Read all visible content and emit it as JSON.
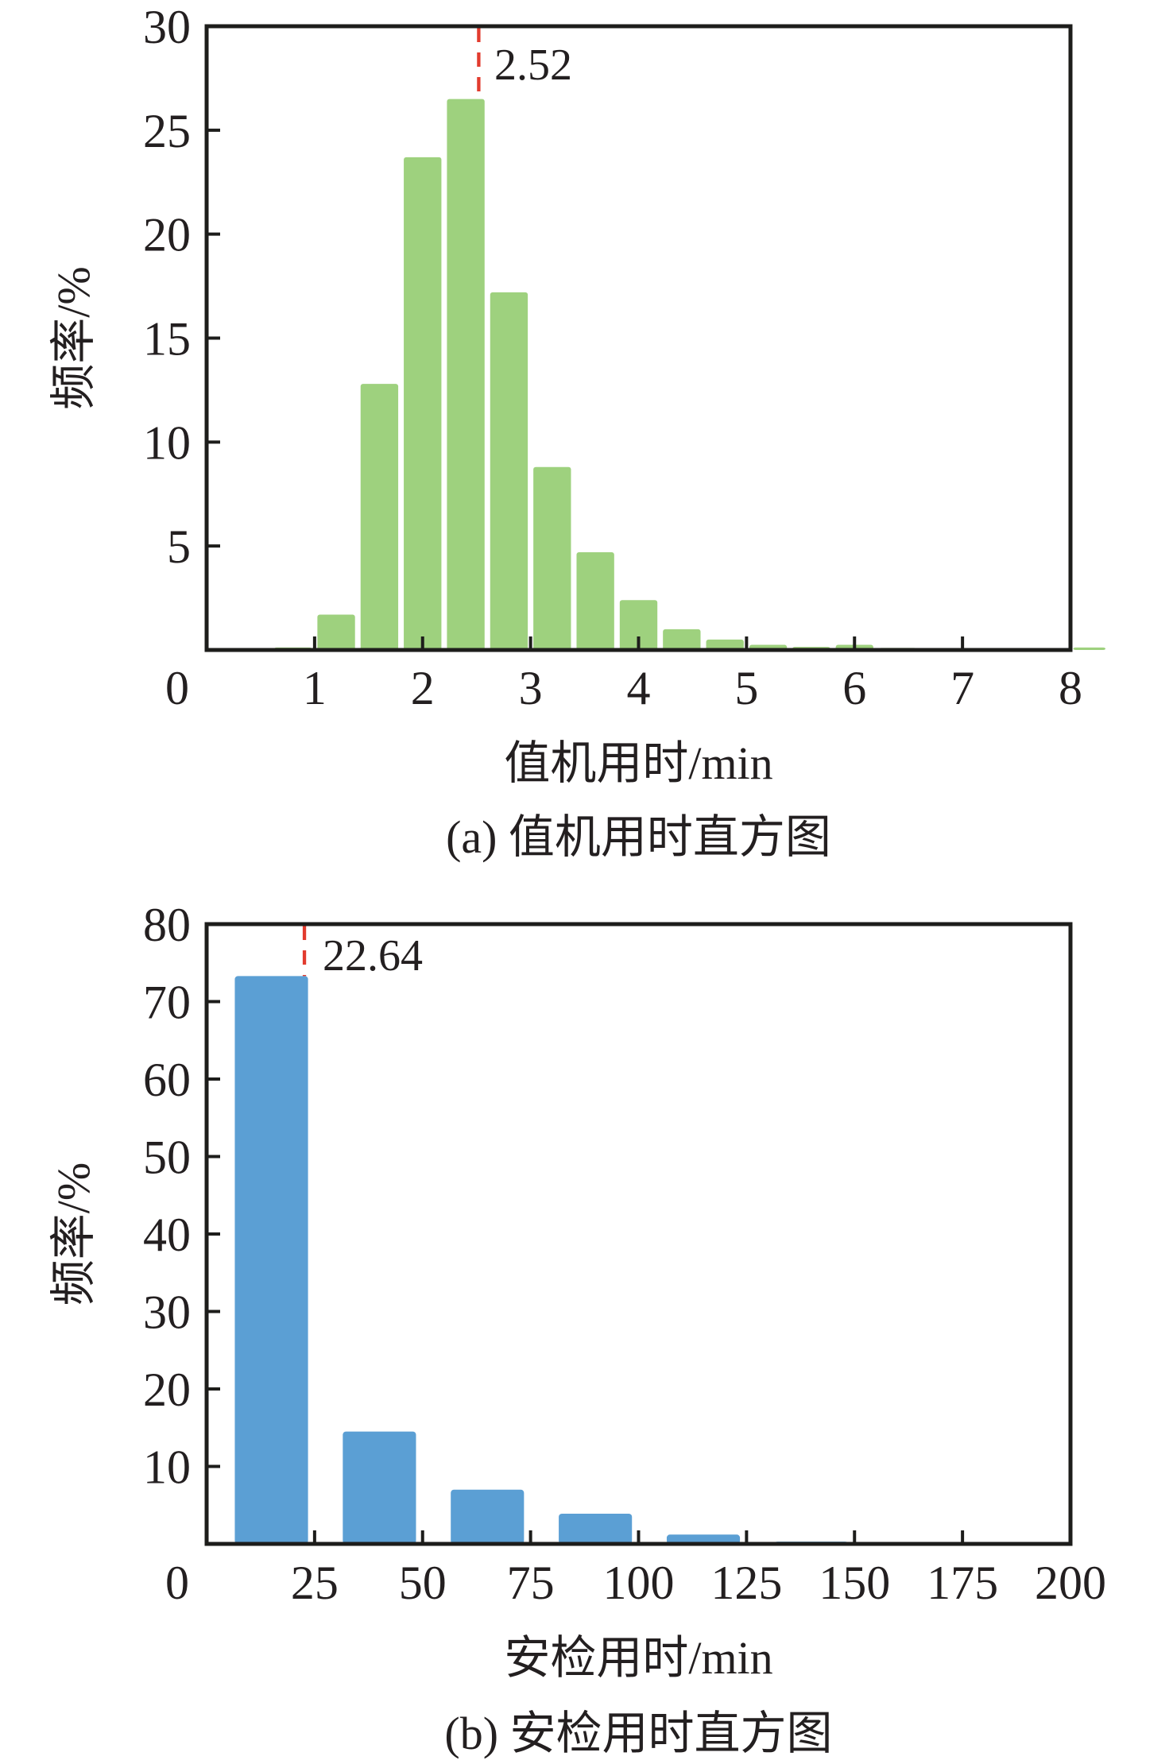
{
  "style": {
    "background": "#ffffff",
    "axis_color": "#1d1d1b",
    "text_color": "#231f20",
    "mean_line_color": "#e23b2e"
  },
  "chart_data": [
    {
      "type": "bar",
      "panel": "a",
      "caption": "(a) 值机用时直方图",
      "xlabel": "值机用时/min",
      "ylabel": "频率/%",
      "xlim": [
        0,
        8
      ],
      "ylim": [
        0,
        30
      ],
      "x_ticks": [
        0,
        1,
        2,
        3,
        4,
        5,
        6,
        7,
        8
      ],
      "y_ticks": [
        5,
        10,
        15,
        20,
        25,
        30
      ],
      "bar_color": "#9ed17e",
      "mean_value": 2.52,
      "mean_label": "2.52",
      "legend": "none",
      "grid": false,
      "bins": [
        {
          "x0": 0.6,
          "x1": 1.0,
          "value": 0.12
        },
        {
          "x0": 1.0,
          "x1": 1.4,
          "value": 1.7
        },
        {
          "x0": 1.4,
          "x1": 1.8,
          "value": 12.8
        },
        {
          "x0": 1.8,
          "x1": 2.2,
          "value": 23.7
        },
        {
          "x0": 2.2,
          "x1": 2.6,
          "value": 26.5
        },
        {
          "x0": 2.6,
          "x1": 3.0,
          "value": 17.2
        },
        {
          "x0": 3.0,
          "x1": 3.4,
          "value": 8.8
        },
        {
          "x0": 3.4,
          "x1": 3.8,
          "value": 4.7
        },
        {
          "x0": 3.8,
          "x1": 4.2,
          "value": 2.4
        },
        {
          "x0": 4.2,
          "x1": 4.6,
          "value": 1.0
        },
        {
          "x0": 4.6,
          "x1": 5.0,
          "value": 0.5
        },
        {
          "x0": 5.0,
          "x1": 5.4,
          "value": 0.25
        },
        {
          "x0": 5.4,
          "x1": 5.8,
          "value": 0.15
        },
        {
          "x0": 5.8,
          "x1": 6.2,
          "value": 0.25
        },
        {
          "x0": 6.2,
          "x1": 6.6,
          "value": 0.1
        },
        {
          "x0": 8.0,
          "x1": 8.35,
          "value": 0.12
        }
      ]
    },
    {
      "type": "bar",
      "panel": "b",
      "caption": "(b) 安检用时直方图",
      "xlabel": "安检用时/min",
      "ylabel": "频率/%",
      "xlim": [
        0,
        200
      ],
      "ylim": [
        0,
        80
      ],
      "x_ticks": [
        0,
        25,
        50,
        75,
        100,
        125,
        150,
        175,
        200
      ],
      "y_ticks": [
        10,
        20,
        30,
        40,
        50,
        60,
        70,
        80
      ],
      "bar_color": "#5b9fd4",
      "mean_value": 22.64,
      "mean_label": "22.64",
      "legend": "none",
      "grid": false,
      "bins": [
        {
          "x0": 4.5,
          "x1": 25.5,
          "value": 73.3
        },
        {
          "x0": 29.5,
          "x1": 50.5,
          "value": 14.5
        },
        {
          "x0": 54.5,
          "x1": 75.5,
          "value": 7.0
        },
        {
          "x0": 79.5,
          "x1": 100.5,
          "value": 3.9
        },
        {
          "x0": 104.5,
          "x1": 125.5,
          "value": 1.2
        },
        {
          "x0": 129.5,
          "x1": 150.5,
          "value": 0.3
        },
        {
          "x0": 154.5,
          "x1": 175.5,
          "value": 0.15
        }
      ]
    }
  ]
}
